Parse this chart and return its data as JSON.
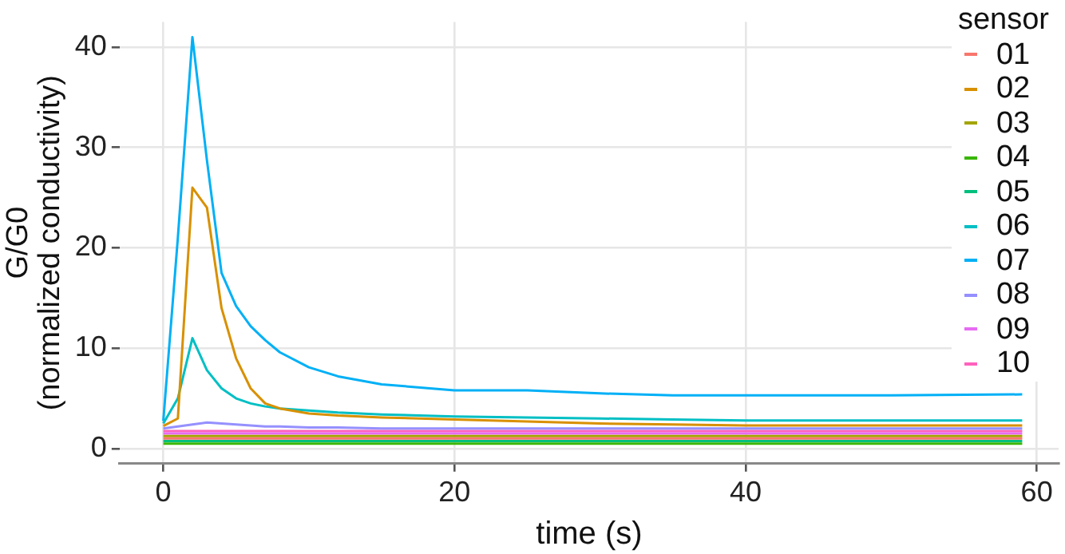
{
  "chart_data": {
    "type": "line",
    "xlabel": "time (s)",
    "ylabel": "G/G0\n(normalized conductivity)",
    "legend_title": "sensor",
    "legend": "top right",
    "grid": true,
    "marker": "none",
    "line_style": "solid",
    "xlim": [
      -3,
      61.5
    ],
    "xticks": [
      0,
      20,
      40,
      60
    ],
    "ylim": [
      -1.5,
      42.5
    ],
    "yticks": [
      0,
      10,
      20,
      30,
      40
    ],
    "x": [
      0,
      1,
      2,
      3,
      4,
      5,
      6,
      7,
      8,
      10,
      12,
      15,
      20,
      25,
      30,
      35,
      40,
      50,
      59
    ],
    "series": [
      {
        "name": "01",
        "color": "#f8766d",
        "values": [
          1,
          1,
          1,
          1,
          1,
          1,
          1,
          1,
          1,
          1,
          1,
          1,
          1,
          1,
          1,
          1,
          1,
          1,
          1
        ]
      },
      {
        "name": "02",
        "color": "#d89000",
        "values": [
          2.25,
          3,
          26,
          24,
          14,
          9,
          6,
          4.5,
          4,
          3.5,
          3.3,
          3.1,
          2.9,
          2.7,
          2.5,
          2.4,
          2.3,
          2.3,
          2.3
        ]
      },
      {
        "name": "03",
        "color": "#a3a500",
        "values": [
          1.25,
          1.25,
          1.25,
          1.25,
          1.25,
          1.25,
          1.25,
          1.25,
          1.25,
          1.25,
          1.25,
          1.25,
          1.25,
          1.25,
          1.25,
          1.25,
          1.25,
          1.25,
          1.25
        ]
      },
      {
        "name": "04",
        "color": "#39b600",
        "values": [
          0.5,
          0.5,
          0.5,
          0.5,
          0.5,
          0.5,
          0.5,
          0.5,
          0.5,
          0.5,
          0.5,
          0.5,
          0.5,
          0.5,
          0.5,
          0.5,
          0.5,
          0.5,
          0.5
        ]
      },
      {
        "name": "05",
        "color": "#00bf7d",
        "values": [
          0.75,
          0.75,
          0.75,
          0.75,
          0.75,
          0.75,
          0.75,
          0.75,
          0.75,
          0.75,
          0.75,
          0.75,
          0.75,
          0.75,
          0.75,
          0.75,
          0.75,
          0.75,
          0.75
        ]
      },
      {
        "name": "06",
        "color": "#00bfc4",
        "values": [
          2.5,
          5,
          11,
          7.8,
          6,
          5,
          4.5,
          4.2,
          4,
          3.8,
          3.6,
          3.4,
          3.2,
          3.1,
          3,
          2.9,
          2.8,
          2.8,
          2.8
        ]
      },
      {
        "name": "07",
        "color": "#00b0f6",
        "values": [
          2.75,
          21,
          41,
          28.7,
          17.5,
          14.2,
          12.2,
          10.8,
          9.6,
          8.1,
          7.2,
          6.4,
          5.8,
          5.8,
          5.5,
          5.3,
          5.3,
          5.3,
          5.4
        ]
      },
      {
        "name": "08",
        "color": "#9590ff",
        "values": [
          2,
          2.2,
          2.4,
          2.6,
          2.5,
          2.4,
          2.3,
          2.2,
          2.2,
          2.1,
          2.1,
          2,
          2,
          2,
          2,
          2,
          2,
          2,
          2
        ]
      },
      {
        "name": "09",
        "color": "#e76bf3",
        "values": [
          1.5,
          1.5,
          1.5,
          1.5,
          1.5,
          1.5,
          1.5,
          1.5,
          1.5,
          1.5,
          1.5,
          1.5,
          1.5,
          1.5,
          1.5,
          1.5,
          1.5,
          1.5,
          1.5
        ]
      },
      {
        "name": "10",
        "color": "#ff62bc",
        "values": [
          1.75,
          1.75,
          1.75,
          1.75,
          1.75,
          1.75,
          1.75,
          1.75,
          1.75,
          1.75,
          1.75,
          1.75,
          1.75,
          1.75,
          1.75,
          1.75,
          1.75,
          1.75,
          1.75
        ]
      }
    ]
  }
}
